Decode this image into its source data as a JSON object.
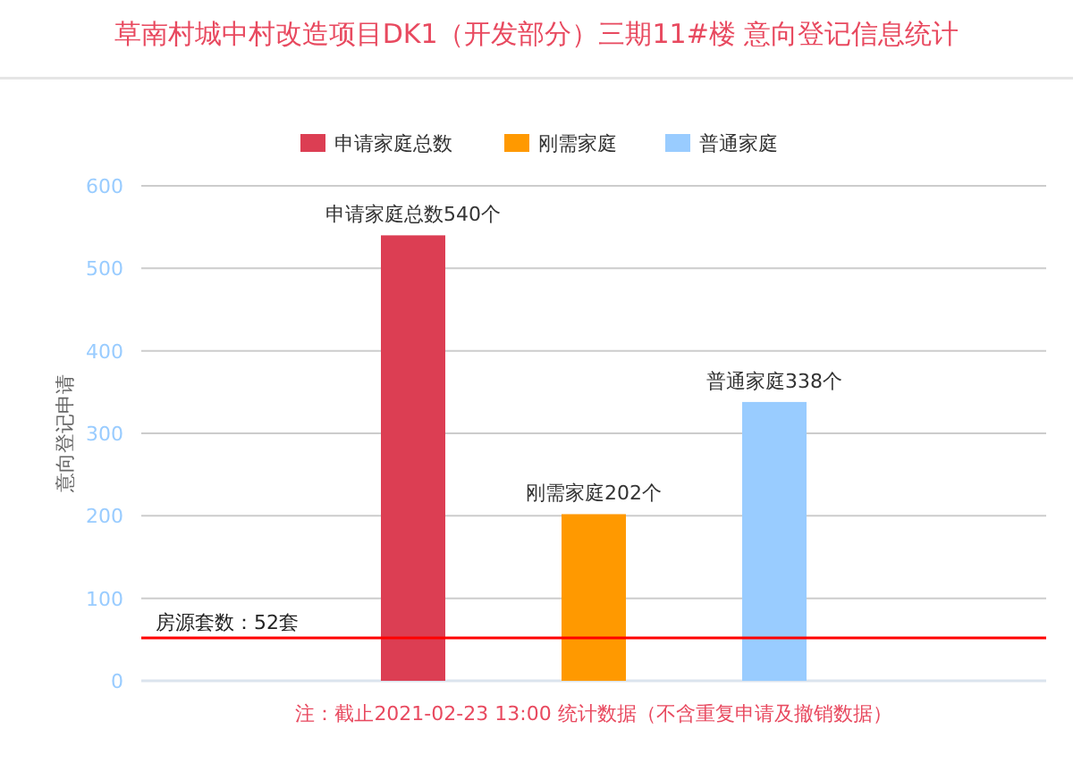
{
  "chart_data": {
    "type": "bar",
    "title": "草南村城中村改造项目DK1（开发部分）三期11#楼 意向登记信息统计",
    "ylabel": "意向登记申请",
    "categories": [
      null
    ],
    "series": [
      {
        "name": "申请家庭总数",
        "color": "#dc3e53",
        "values": [
          540
        ],
        "value_labels": [
          "申请家庭总数540个"
        ]
      },
      {
        "name": "刚需家庭",
        "color": "#ff9900",
        "values": [
          202
        ],
        "value_labels": [
          "刚需家庭202个"
        ]
      },
      {
        "name": "普通家庭",
        "color": "#99ccff",
        "values": [
          338
        ],
        "value_labels": [
          "普通家庭338个"
        ]
      }
    ],
    "ylim": [
      0,
      600
    ],
    "yticks": [
      0,
      100,
      200,
      300,
      400,
      500,
      600
    ],
    "grid": "y",
    "legend": "top",
    "ref_lines": [
      {
        "axis": "y",
        "value": 52,
        "label": "房源套数：52套",
        "color": "#ff0000"
      }
    ],
    "annotations": [
      "注：截止2021-02-23 13:00 统计数据（不含重复申请及撤销数据）"
    ]
  }
}
